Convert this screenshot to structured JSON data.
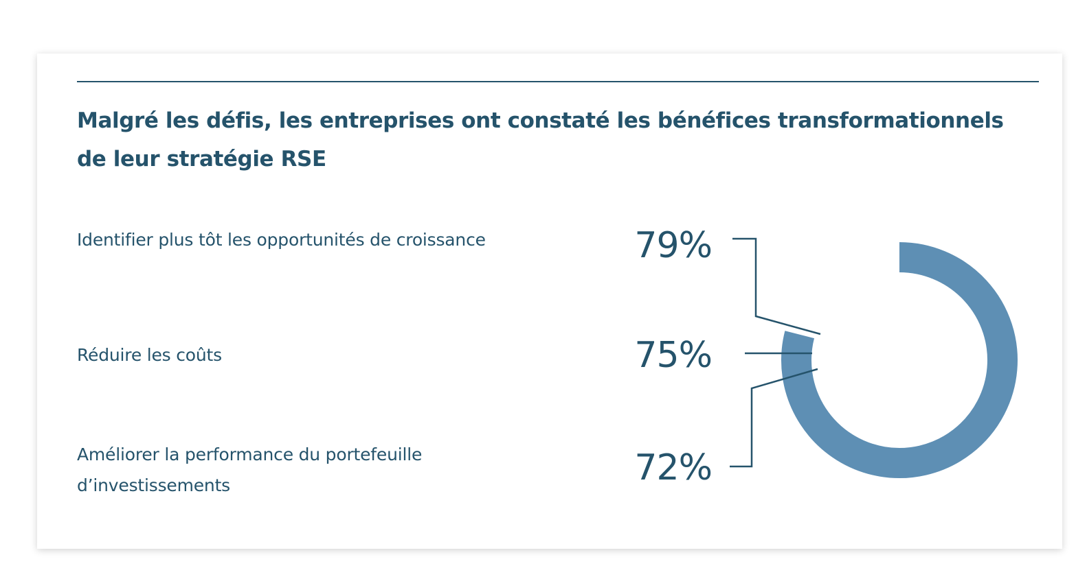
{
  "chart_data": {
    "type": "pie",
    "title": "Malgré les défis, les entreprises ont constaté les bénéfices transformationnels de leur stratégie RSE",
    "categories": [
      "Identifier plus tôt les opportunités de croissance",
      "Réduire les coûts",
      "Améliorer la performance du portefeuille d’investissements"
    ],
    "values": [
      79,
      75,
      72
    ],
    "value_labels": [
      "79%",
      "75%",
      "72%"
    ],
    "unit": "%"
  },
  "colors": {
    "text": "#25536b",
    "ring": "#5e8fb4",
    "rule": "#25536b"
  }
}
